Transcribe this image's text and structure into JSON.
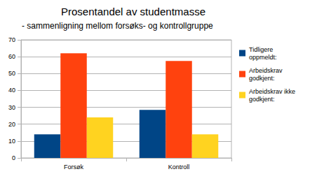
{
  "chart_data": {
    "type": "bar",
    "title": "Prosentandel av studentmasse",
    "subtitle": "- sammenligning mellom forsøks- og kontrollgruppe",
    "categories": [
      "Forsøk",
      "Kontroll"
    ],
    "series": [
      {
        "name": "Tidligere oppmeldt:",
        "color": "#004586",
        "values": [
          14,
          28.5
        ]
      },
      {
        "name": "Arbeidskrav godkjent:",
        "color": "#ff420e",
        "values": [
          62,
          57.5
        ]
      },
      {
        "name": "Arbeidskrav ikke godkjent:",
        "color": "#ffd320",
        "values": [
          24,
          14
        ]
      }
    ],
    "ylim": [
      0,
      70
    ],
    "yticks": [
      0,
      10,
      20,
      30,
      40,
      50,
      60,
      70
    ],
    "grid": true,
    "legend": "right"
  }
}
